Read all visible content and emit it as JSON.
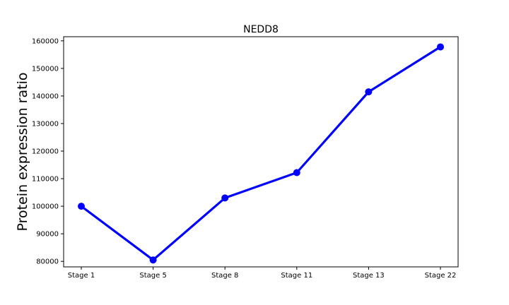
{
  "chart_data": {
    "type": "line",
    "title": "NEDD8",
    "xlabel": "",
    "ylabel": "Protein expression ratio",
    "categories": [
      "Stage 1",
      "Stage 5",
      "Stage 8",
      "Stage 11",
      "Stage 13",
      "Stage 22"
    ],
    "series": [
      {
        "values": [
          100000,
          80500,
          103000,
          112200,
          141500,
          157800
        ]
      }
    ],
    "yticks": [
      80000,
      90000,
      100000,
      110000,
      120000,
      130000,
      140000,
      150000,
      160000
    ],
    "ylim": [
      78000,
      161500
    ],
    "grid": false,
    "line_color": "#0000ff",
    "marker": "circle"
  }
}
